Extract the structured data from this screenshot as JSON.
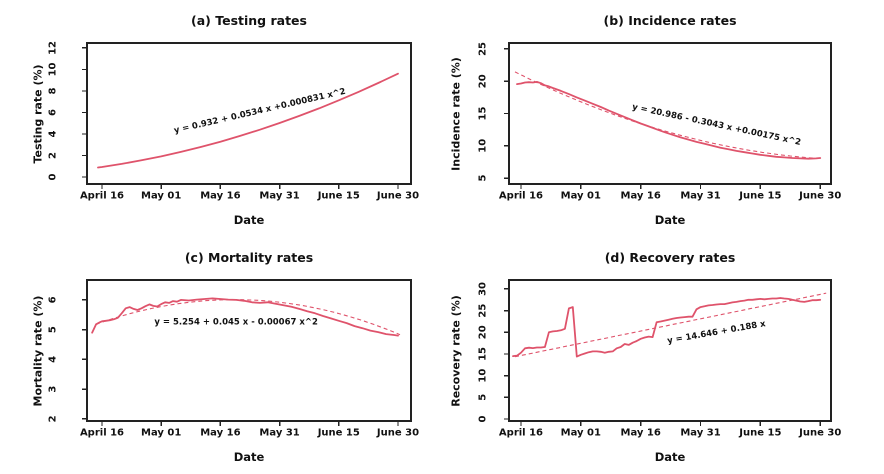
{
  "figure": {
    "background": "#FFFFFF",
    "curve_color": "#DF536B",
    "fit_color": "#DF536B",
    "equation_color": "#F43545",
    "axis_color": "#222222",
    "text_color": "#111111"
  },
  "chart_data": [
    {
      "id": "a",
      "type": "line",
      "title": "(a) Testing rates",
      "xlabel": "Date",
      "ylabel": "Testing rate (%)",
      "x_tick_labels": [
        "April 16",
        "May 01",
        "May 16",
        "May 31",
        "June 15",
        "June 30"
      ],
      "x_tick_days": [
        0,
        15,
        30,
        45,
        60,
        75
      ],
      "y_ticks": [
        0,
        2,
        4,
        6,
        8,
        10,
        12
      ],
      "xlim": [
        -3.8,
        78.3
      ],
      "ylim": [
        -0.65,
        12.46
      ],
      "grid": false,
      "equation": {
        "text": "y = 0.932 + 0.0534 x +0.000831 x^2",
        "t": 40,
        "v": 6.1,
        "angle": -13
      },
      "observed": [
        [
          -1,
          0.88
        ],
        [
          0,
          0.93
        ],
        [
          5,
          1.22
        ],
        [
          10,
          1.55
        ],
        [
          15,
          1.92
        ],
        [
          20,
          2.33
        ],
        [
          25,
          2.79
        ],
        [
          30,
          3.28
        ],
        [
          35,
          3.82
        ],
        [
          40,
          4.4
        ],
        [
          45,
          5.02
        ],
        [
          50,
          5.68
        ],
        [
          55,
          6.38
        ],
        [
          60,
          7.13
        ],
        [
          65,
          7.91
        ],
        [
          70,
          8.74
        ],
        [
          75,
          9.61
        ]
      ],
      "fit": null
    },
    {
      "id": "b",
      "type": "line",
      "title": "(b) Incidence rates",
      "xlabel": "Date",
      "ylabel": "Incidence rate (%)",
      "x_tick_labels": [
        "April 16",
        "May 01",
        "May 16",
        "May 31",
        "June 15",
        "June 30"
      ],
      "x_tick_days": [
        0,
        15,
        30,
        45,
        60,
        75
      ],
      "y_ticks": [
        5,
        10,
        15,
        20,
        25
      ],
      "xlim": [
        -3.0,
        77.7
      ],
      "ylim": [
        4.08,
        25.92
      ],
      "grid": false,
      "equation": {
        "text": "y = 20.986 - 0.3043 x +0.00175 x^2",
        "t": 49,
        "v": 13.2,
        "angle": 12
      },
      "observed": [
        [
          -1,
          19.55
        ],
        [
          0,
          19.65
        ],
        [
          1,
          19.8
        ],
        [
          2,
          19.85
        ],
        [
          3,
          19.8
        ],
        [
          4,
          19.9
        ],
        [
          5,
          19.7
        ],
        [
          6,
          19.35
        ],
        [
          7,
          19.2
        ],
        [
          8,
          18.95
        ],
        [
          10,
          18.5
        ],
        [
          12,
          18.0
        ],
        [
          14,
          17.5
        ],
        [
          16,
          17.0
        ],
        [
          18,
          16.5
        ],
        [
          20,
          16.0
        ],
        [
          22,
          15.45
        ],
        [
          24,
          14.95
        ],
        [
          26,
          14.45
        ],
        [
          28,
          13.95
        ],
        [
          30,
          13.45
        ],
        [
          32,
          13.0
        ],
        [
          34,
          12.55
        ],
        [
          36,
          12.1
        ],
        [
          38,
          11.7
        ],
        [
          40,
          11.3
        ],
        [
          42,
          10.95
        ],
        [
          44,
          10.6
        ],
        [
          46,
          10.3
        ],
        [
          48,
          10.0
        ],
        [
          50,
          9.7
        ],
        [
          52,
          9.45
        ],
        [
          54,
          9.2
        ],
        [
          56,
          9.0
        ],
        [
          58,
          8.8
        ],
        [
          60,
          8.6
        ],
        [
          62,
          8.45
        ],
        [
          64,
          8.3
        ],
        [
          66,
          8.2
        ],
        [
          68,
          8.1
        ],
        [
          70,
          8.05
        ],
        [
          72,
          8.0
        ],
        [
          74,
          8.05
        ],
        [
          75,
          8.1
        ]
      ],
      "fit": {
        "coeffs": [
          20.986,
          -0.3043,
          0.00175
        ],
        "range": [
          -1.5,
          75
        ]
      }
    },
    {
      "id": "c",
      "type": "line",
      "title": "(c) Mortality rates",
      "xlabel": "Date",
      "ylabel": "Mortality rate (%)",
      "x_tick_labels": [
        "April 16",
        "May 01",
        "May 16",
        "May 31",
        "June 15",
        "June 30"
      ],
      "x_tick_days": [
        0,
        15,
        30,
        45,
        60,
        75
      ],
      "y_ticks": [
        2,
        3,
        4,
        5,
        6
      ],
      "xlim": [
        -3.8,
        78.3
      ],
      "ylim": [
        1.93,
        6.67
      ],
      "grid": false,
      "equation": {
        "text": "y = 5.254 + 0.045 x - 0.00067 x^2",
        "t": 34,
        "v": 5.24,
        "angle": 0
      },
      "observed": [
        [
          -2.5,
          4.9
        ],
        [
          -1.5,
          5.18
        ],
        [
          -0.5,
          5.25
        ],
        [
          0,
          5.28
        ],
        [
          1,
          5.3
        ],
        [
          2,
          5.32
        ],
        [
          3,
          5.35
        ],
        [
          4,
          5.4
        ],
        [
          5,
          5.55
        ],
        [
          6,
          5.72
        ],
        [
          7,
          5.76
        ],
        [
          8,
          5.7
        ],
        [
          9,
          5.66
        ],
        [
          10,
          5.72
        ],
        [
          11,
          5.79
        ],
        [
          12,
          5.85
        ],
        [
          13,
          5.8
        ],
        [
          14,
          5.78
        ],
        [
          15,
          5.86
        ],
        [
          16,
          5.92
        ],
        [
          17,
          5.9
        ],
        [
          18,
          5.96
        ],
        [
          19,
          5.94
        ],
        [
          20,
          6.0
        ],
        [
          22,
          5.98
        ],
        [
          24,
          6.01
        ],
        [
          26,
          6.03
        ],
        [
          28,
          6.05
        ],
        [
          30,
          6.03
        ],
        [
          32,
          6.01
        ],
        [
          34,
          6.0
        ],
        [
          36,
          5.97
        ],
        [
          38,
          5.92
        ],
        [
          40,
          5.9
        ],
        [
          42,
          5.92
        ],
        [
          44,
          5.87
        ],
        [
          46,
          5.82
        ],
        [
          48,
          5.77
        ],
        [
          50,
          5.7
        ],
        [
          52,
          5.62
        ],
        [
          54,
          5.55
        ],
        [
          56,
          5.46
        ],
        [
          58,
          5.38
        ],
        [
          60,
          5.3
        ],
        [
          62,
          5.22
        ],
        [
          64,
          5.12
        ],
        [
          66,
          5.05
        ],
        [
          68,
          4.97
        ],
        [
          70,
          4.92
        ],
        [
          72,
          4.85
        ],
        [
          74,
          4.82
        ],
        [
          75,
          4.8
        ]
      ],
      "fit": {
        "coeffs": [
          5.254,
          0.045,
          -0.00067
        ],
        "range": [
          -1.5,
          75.5
        ]
      }
    },
    {
      "id": "d",
      "type": "line",
      "title": "(d) Recovery rates",
      "xlabel": "Date",
      "ylabel": "Recovery rate (%)",
      "x_tick_labels": [
        "April 16",
        "May 01",
        "May 16",
        "May 31",
        "June 15",
        "June 30"
      ],
      "x_tick_days": [
        0,
        15,
        30,
        45,
        60,
        75
      ],
      "y_ticks": [
        0,
        5,
        10,
        15,
        20,
        25,
        30
      ],
      "xlim": [
        -3.0,
        77.7
      ],
      "ylim": [
        -0.46,
        32.06
      ],
      "grid": false,
      "equation": {
        "text": "y = 14.646 + 0.188 x",
        "t": 49,
        "v": 19.9,
        "angle": -10
      },
      "observed": [
        [
          -2,
          14.5
        ],
        [
          -1,
          14.6
        ],
        [
          0,
          15.3
        ],
        [
          1,
          16.3
        ],
        [
          2,
          16.45
        ],
        [
          3,
          16.35
        ],
        [
          4,
          16.5
        ],
        [
          5,
          16.5
        ],
        [
          6,
          16.6
        ],
        [
          7,
          20.0
        ],
        [
          8,
          20.2
        ],
        [
          9,
          20.3
        ],
        [
          10,
          20.45
        ],
        [
          11,
          20.8
        ],
        [
          12,
          25.5
        ],
        [
          13,
          25.8
        ],
        [
          14,
          14.4
        ],
        [
          15,
          14.8
        ],
        [
          16,
          15.1
        ],
        [
          17,
          15.4
        ],
        [
          18,
          15.6
        ],
        [
          19,
          15.6
        ],
        [
          20,
          15.5
        ],
        [
          21,
          15.3
        ],
        [
          22,
          15.5
        ],
        [
          23,
          15.6
        ],
        [
          24,
          16.3
        ],
        [
          25,
          16.6
        ],
        [
          26,
          17.3
        ],
        [
          27,
          17.1
        ],
        [
          28,
          17.6
        ],
        [
          29,
          18.0
        ],
        [
          30,
          18.5
        ],
        [
          31,
          18.8
        ],
        [
          32,
          19.0
        ],
        [
          33,
          18.9
        ],
        [
          34,
          22.3
        ],
        [
          35,
          22.5
        ],
        [
          36,
          22.7
        ],
        [
          37,
          22.9
        ],
        [
          38,
          23.1
        ],
        [
          39,
          23.3
        ],
        [
          40,
          23.4
        ],
        [
          41,
          23.5
        ],
        [
          42,
          23.6
        ],
        [
          43,
          23.6
        ],
        [
          44,
          25.3
        ],
        [
          45,
          25.8
        ],
        [
          46,
          26.0
        ],
        [
          47,
          26.2
        ],
        [
          48,
          26.3
        ],
        [
          49,
          26.4
        ],
        [
          50,
          26.5
        ],
        [
          51,
          26.5
        ],
        [
          52,
          26.7
        ],
        [
          53,
          26.9
        ],
        [
          54,
          27.0
        ],
        [
          55,
          27.2
        ],
        [
          56,
          27.3
        ],
        [
          57,
          27.5
        ],
        [
          58,
          27.5
        ],
        [
          59,
          27.6
        ],
        [
          60,
          27.7
        ],
        [
          61,
          27.6
        ],
        [
          62,
          27.7
        ],
        [
          63,
          27.8
        ],
        [
          64,
          27.8
        ],
        [
          65,
          27.9
        ],
        [
          66,
          27.8
        ],
        [
          67,
          27.7
        ],
        [
          68,
          27.5
        ],
        [
          69,
          27.3
        ],
        [
          70,
          27.1
        ],
        [
          71,
          27.0
        ],
        [
          72,
          27.2
        ],
        [
          73,
          27.4
        ],
        [
          74,
          27.4
        ],
        [
          75,
          27.5
        ]
      ],
      "fit": {
        "coeffs": [
          14.646,
          0.188
        ],
        "range": [
          -1.5,
          76.5
        ]
      }
    }
  ]
}
